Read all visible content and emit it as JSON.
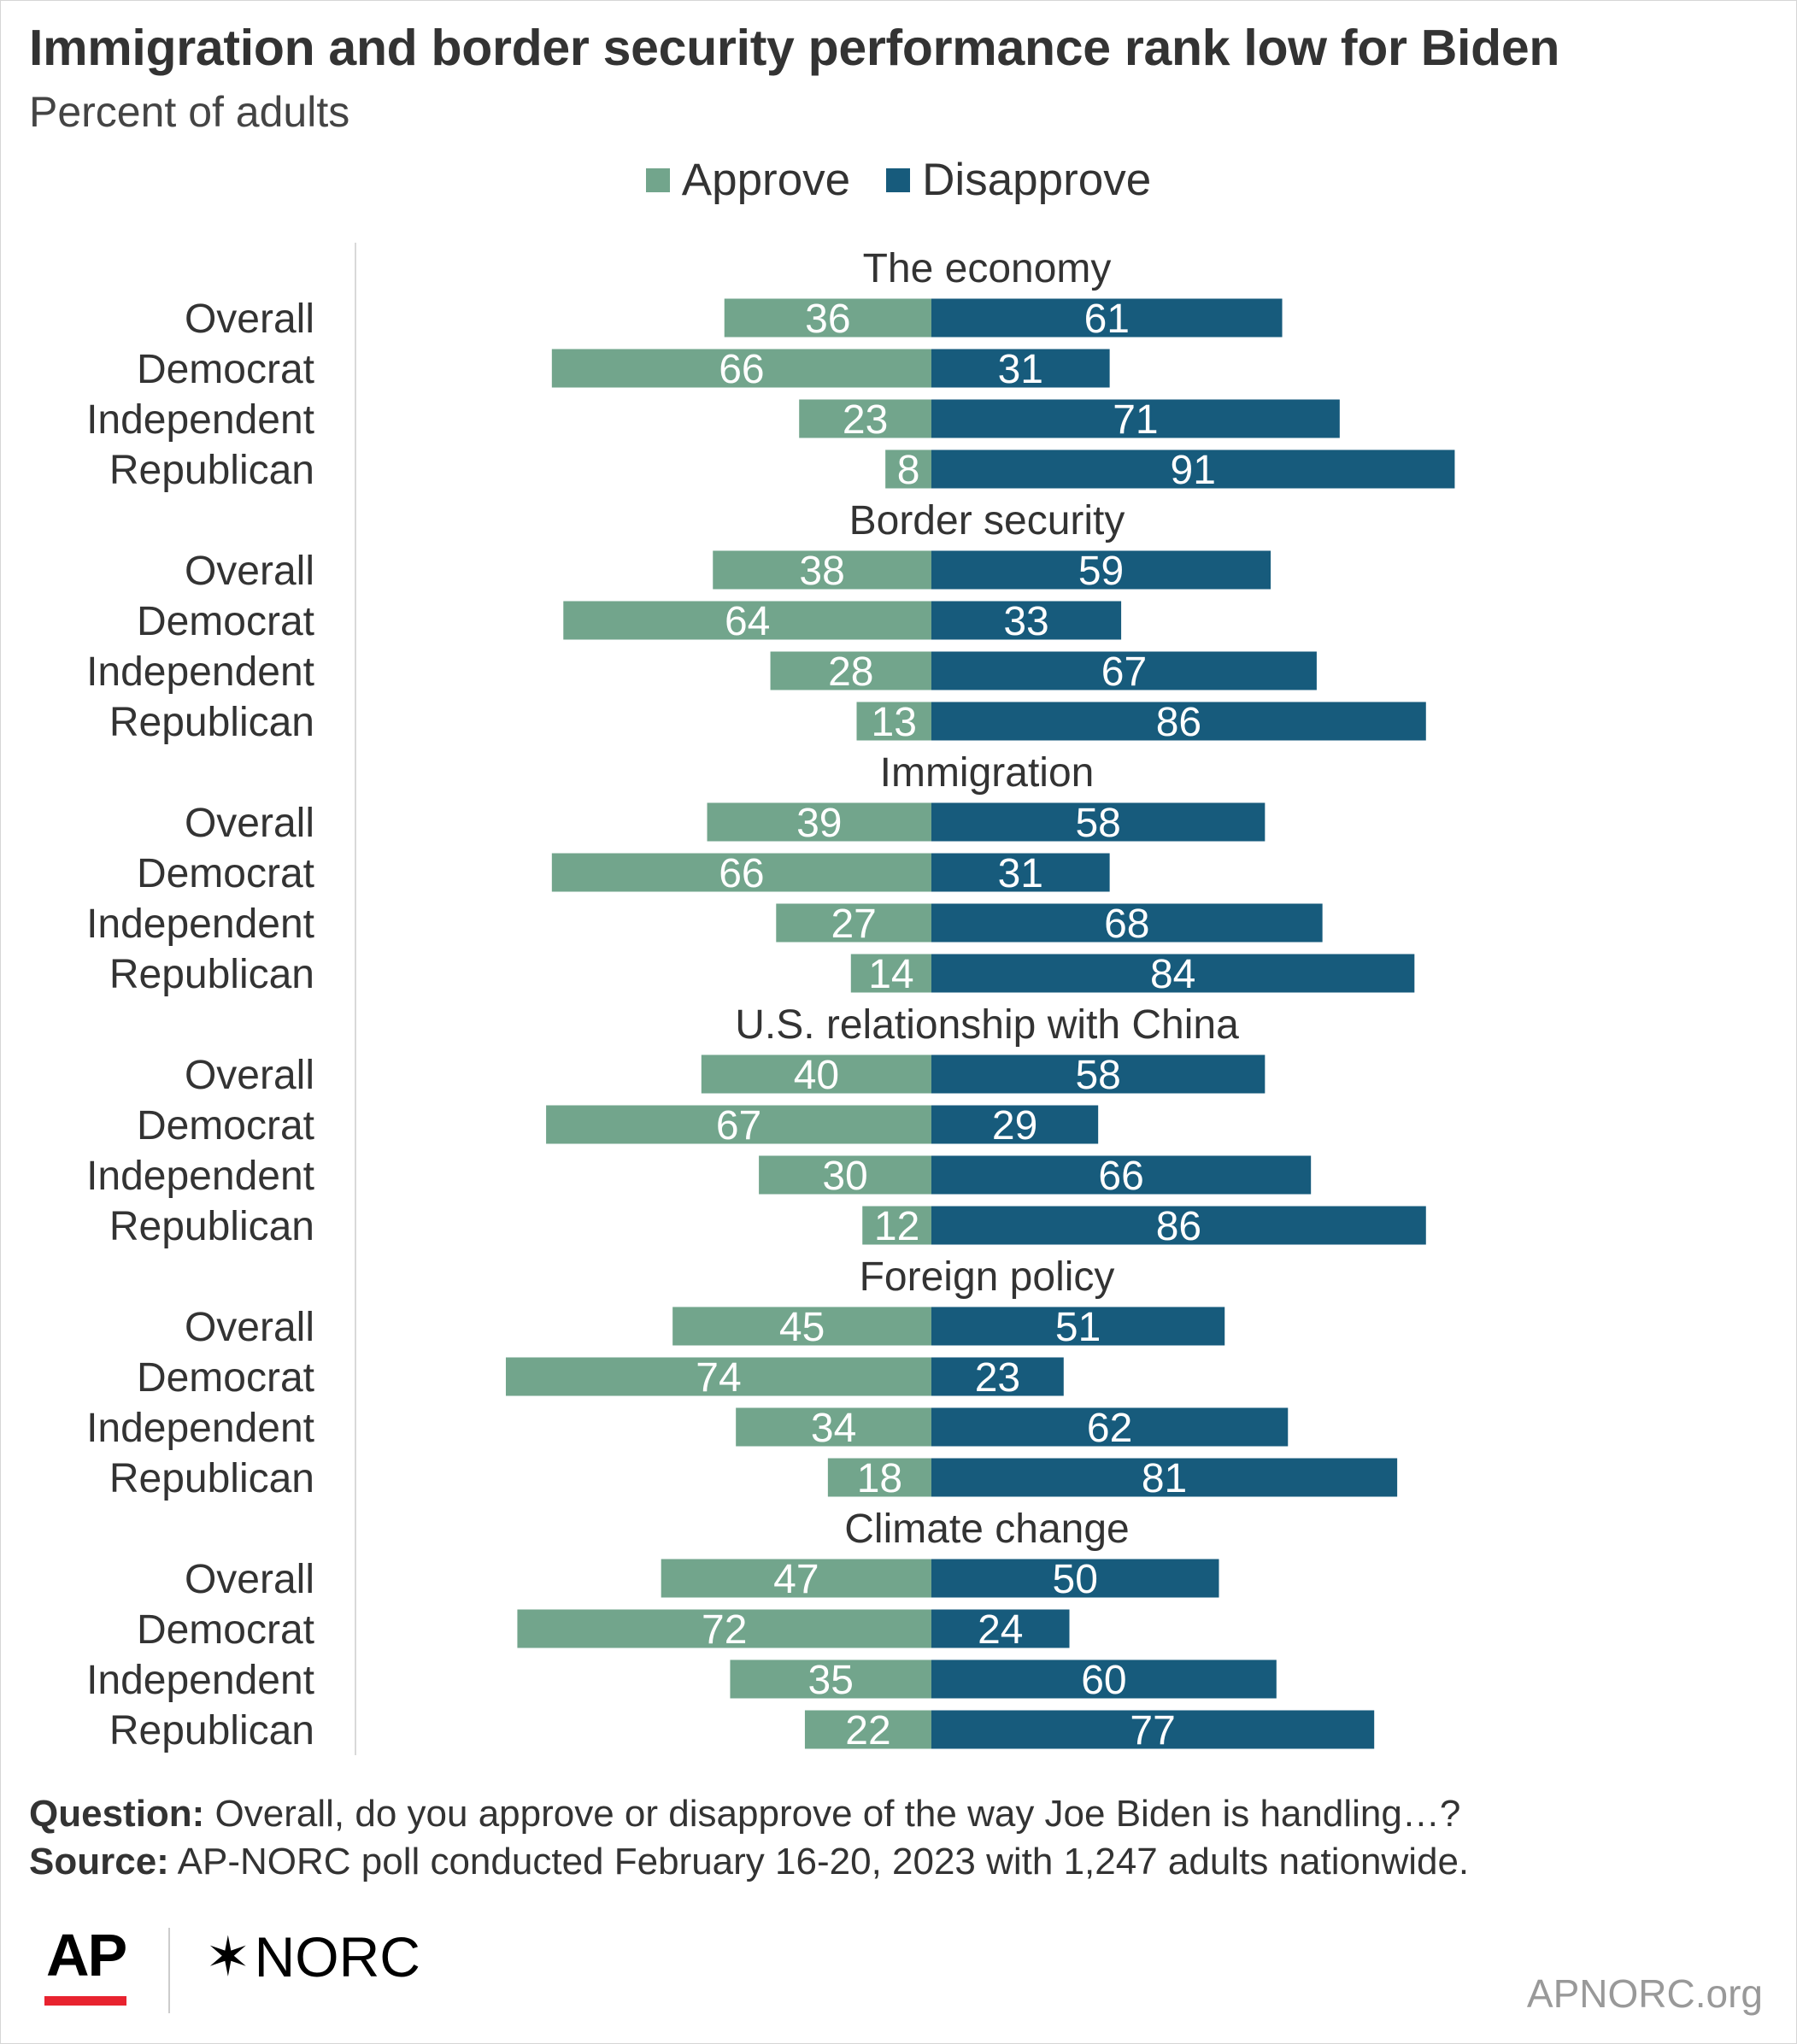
{
  "header": {
    "title": "Immigration and border security performance rank low for Biden",
    "subtitle": "Percent of adults"
  },
  "colors": {
    "approve": "#72a58c",
    "disapprove": "#175b7c"
  },
  "chart_data": {
    "type": "bar",
    "orientation": "horizontal-diverging",
    "legend": {
      "position": "top-center",
      "entries": [
        "Approve",
        "Disapprove"
      ]
    },
    "series": [
      {
        "name": "Approve",
        "color": "#72a58c"
      },
      {
        "name": "Disapprove",
        "color": "#175b7c"
      }
    ],
    "groups": [
      {
        "label": "The economy",
        "rows": [
          {
            "category": "Overall",
            "approve": 36,
            "disapprove": 61
          },
          {
            "category": "Democrat",
            "approve": 66,
            "disapprove": 31
          },
          {
            "category": "Independent",
            "approve": 23,
            "disapprove": 71
          },
          {
            "category": "Republican",
            "approve": 8,
            "disapprove": 91
          }
        ]
      },
      {
        "label": "Border security",
        "rows": [
          {
            "category": "Overall",
            "approve": 38,
            "disapprove": 59
          },
          {
            "category": "Democrat",
            "approve": 64,
            "disapprove": 33
          },
          {
            "category": "Independent",
            "approve": 28,
            "disapprove": 67
          },
          {
            "category": "Republican",
            "approve": 13,
            "disapprove": 86
          }
        ]
      },
      {
        "label": "Immigration",
        "rows": [
          {
            "category": "Overall",
            "approve": 39,
            "disapprove": 58
          },
          {
            "category": "Democrat",
            "approve": 66,
            "disapprove": 31
          },
          {
            "category": "Independent",
            "approve": 27,
            "disapprove": 68
          },
          {
            "category": "Republican",
            "approve": 14,
            "disapprove": 84
          }
        ]
      },
      {
        "label": "U.S. relationship with China",
        "rows": [
          {
            "category": "Overall",
            "approve": 40,
            "disapprove": 58
          },
          {
            "category": "Democrat",
            "approve": 67,
            "disapprove": 29
          },
          {
            "category": "Independent",
            "approve": 30,
            "disapprove": 66
          },
          {
            "category": "Republican",
            "approve": 12,
            "disapprove": 86
          }
        ]
      },
      {
        "label": "Foreign policy",
        "rows": [
          {
            "category": "Overall",
            "approve": 45,
            "disapprove": 51
          },
          {
            "category": "Democrat",
            "approve": 74,
            "disapprove": 23
          },
          {
            "category": "Independent",
            "approve": 34,
            "disapprove": 62
          },
          {
            "category": "Republican",
            "approve": 18,
            "disapprove": 81
          }
        ]
      },
      {
        "label": "Climate change",
        "rows": [
          {
            "category": "Overall",
            "approve": 47,
            "disapprove": 50
          },
          {
            "category": "Democrat",
            "approve": 72,
            "disapprove": 24
          },
          {
            "category": "Independent",
            "approve": 35,
            "disapprove": 60
          },
          {
            "category": "Republican",
            "approve": 22,
            "disapprove": 77
          }
        ]
      }
    ],
    "xlabel": "",
    "ylabel": "",
    "grid": false
  },
  "footer": {
    "question_label": "Question:",
    "question_text": " Overall, do you approve or disapprove of the way Joe Biden is handling…?",
    "source_label": "Source:",
    "source_text": " AP-NORC poll conducted February 16-20, 2023 with 1,247 adults nationwide."
  },
  "branding": {
    "ap": "AP",
    "norc_star": "✶",
    "norc": "NORC",
    "site": "APNORC.org"
  }
}
